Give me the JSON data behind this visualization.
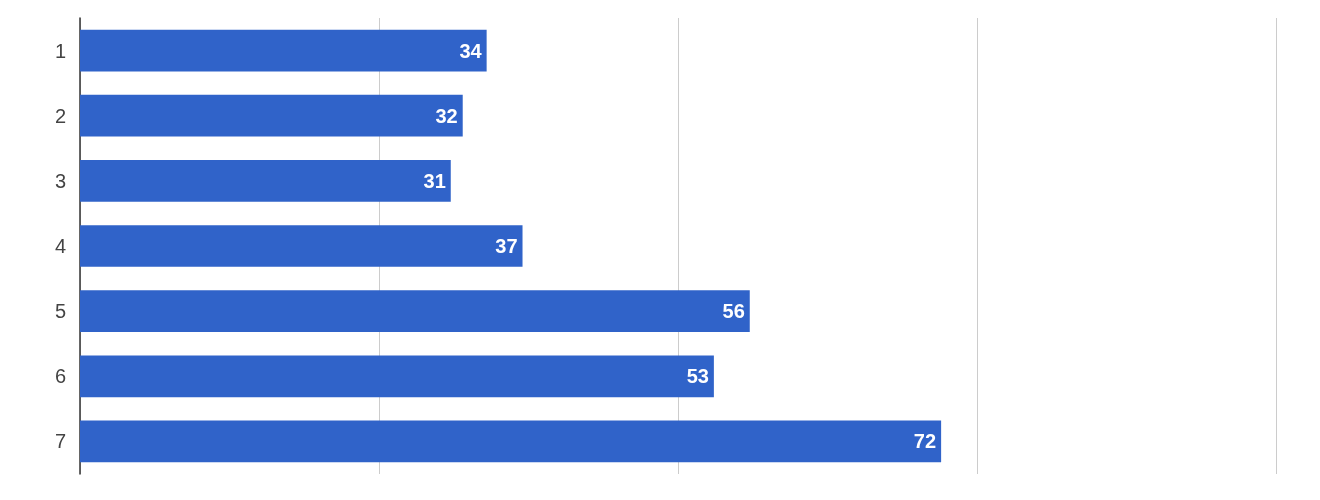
{
  "chart_data": {
    "type": "bar",
    "orientation": "horizontal",
    "categories": [
      "1",
      "2",
      "3",
      "4",
      "5",
      "6",
      "7"
    ],
    "values": [
      34,
      32,
      31,
      37,
      56,
      53,
      72
    ],
    "color": "#3063c9",
    "data_labels": true,
    "grid": "x",
    "tick_labels": "y",
    "xlim": [
      0,
      100
    ],
    "xticks": [
      {
        "value": 0,
        "label": null
      },
      {
        "value": 25,
        "label": null
      },
      {
        "value": 50,
        "label": null
      },
      {
        "value": 75,
        "label": null
      },
      {
        "value": 100,
        "label": null
      }
    ]
  }
}
